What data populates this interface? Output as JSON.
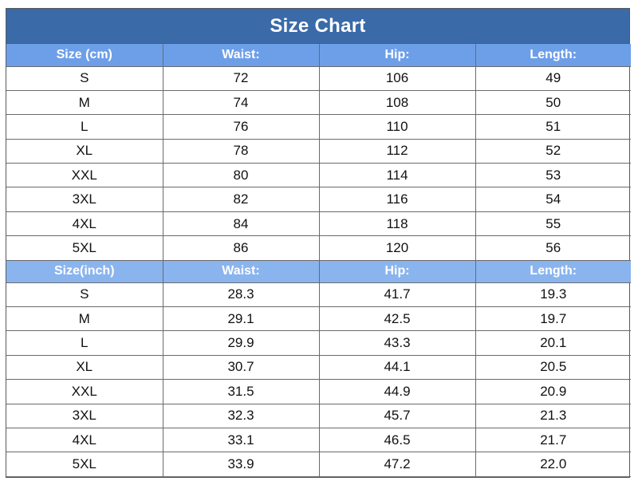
{
  "title": "Size Chart",
  "colors": {
    "title_bar": "#3a6aa8",
    "header_row": "#7aaaf0",
    "grid": "#6a6a6a"
  },
  "cm_table": {
    "headers": [
      "Size (cm)",
      "Waist:",
      "Hip:",
      "Length:"
    ],
    "rows": [
      [
        "S",
        "72",
        "106",
        "49"
      ],
      [
        "M",
        "74",
        "108",
        "50"
      ],
      [
        "L",
        "76",
        "110",
        "51"
      ],
      [
        "XL",
        "78",
        "112",
        "52"
      ],
      [
        "XXL",
        "80",
        "114",
        "53"
      ],
      [
        "3XL",
        "82",
        "116",
        "54"
      ],
      [
        "4XL",
        "84",
        "118",
        "55"
      ],
      [
        "5XL",
        "86",
        "120",
        "56"
      ]
    ]
  },
  "inch_table": {
    "headers": [
      "Size(inch)",
      "Waist:",
      "Hip:",
      "Length:"
    ],
    "rows": [
      [
        "S",
        "28.3",
        "41.7",
        "19.3"
      ],
      [
        "M",
        "29.1",
        "42.5",
        "19.7"
      ],
      [
        "L",
        "29.9",
        "43.3",
        "20.1"
      ],
      [
        "XL",
        "30.7",
        "44.1",
        "20.5"
      ],
      [
        "XXL",
        "31.5",
        "44.9",
        "20.9"
      ],
      [
        "3XL",
        "32.3",
        "45.7",
        "21.3"
      ],
      [
        "4XL",
        "33.1",
        "46.5",
        "21.7"
      ],
      [
        "5XL",
        "33.9",
        "47.2",
        "22.0"
      ]
    ]
  }
}
